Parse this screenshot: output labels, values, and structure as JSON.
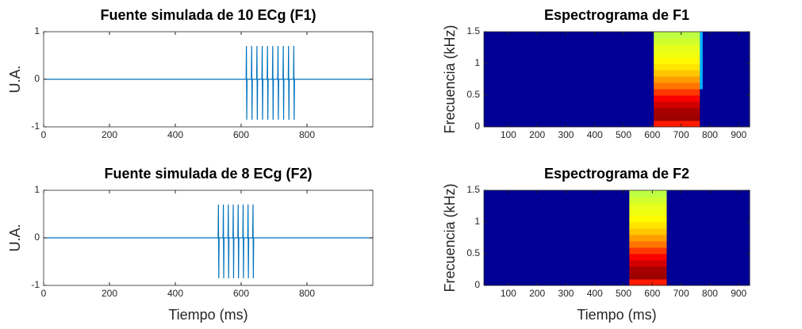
{
  "chart_data": [
    {
      "type": "line",
      "title": "Fuente simulada de 10 ECg (F1)",
      "ylabel": "U.A.",
      "color": "#0072bd",
      "x": [
        0,
        615,
        616,
        617,
        618,
        631,
        632,
        633,
        634,
        647,
        648,
        649,
        650,
        663,
        664,
        665,
        666,
        679,
        680,
        681,
        682,
        695,
        696,
        697,
        698,
        711,
        712,
        713,
        714,
        727,
        728,
        729,
        730,
        743,
        744,
        745,
        746,
        759,
        760,
        761,
        762,
        1000
      ],
      "values": [
        0,
        0,
        0.7,
        -0.85,
        0,
        0,
        0.7,
        -0.85,
        0,
        0,
        0.7,
        -0.85,
        0,
        0,
        0.7,
        -0.85,
        0,
        0,
        0.7,
        -0.85,
        0,
        0,
        0.7,
        -0.85,
        0,
        0,
        0.7,
        -0.85,
        0,
        0,
        0.7,
        -0.85,
        0,
        0,
        0.7,
        -0.85,
        0,
        0,
        0.7,
        -0.85,
        0,
        0
      ],
      "xlim": [
        0,
        1000
      ],
      "ylim": [
        -1,
        1
      ],
      "xticks": [
        0,
        200,
        400,
        600,
        800
      ],
      "yticks": [
        -1,
        0,
        1
      ]
    },
    {
      "type": "heatmap",
      "title": "Espectrograma de F1",
      "ylabel": "Frecuencia (kHz)",
      "colormap": "jet",
      "x_edges": [
        15,
        605,
        765,
        775,
        938
      ],
      "y_edges": [
        0,
        0.1,
        0.2,
        0.3,
        0.4,
        0.5,
        0.6,
        0.7,
        0.8,
        0.9,
        1.0,
        1.1,
        1.2,
        1.3,
        1.4,
        1.5
      ],
      "z": [
        [
          0.02,
          0.85,
          0.02,
          0.02
        ],
        [
          0.02,
          0.97,
          0.02,
          0.02
        ],
        [
          0.02,
          0.96,
          0.02,
          0.02
        ],
        [
          0.02,
          0.92,
          0.02,
          0.02
        ],
        [
          0.02,
          0.88,
          0.02,
          0.02
        ],
        [
          0.02,
          0.82,
          0.02,
          0.02
        ],
        [
          0.02,
          0.76,
          0.3,
          0.02
        ],
        [
          0.02,
          0.72,
          0.3,
          0.02
        ],
        [
          0.02,
          0.68,
          0.3,
          0.02
        ],
        [
          0.02,
          0.65,
          0.3,
          0.02
        ],
        [
          0.02,
          0.63,
          0.3,
          0.02
        ],
        [
          0.02,
          0.61,
          0.3,
          0.02
        ],
        [
          0.02,
          0.6,
          0.3,
          0.02
        ],
        [
          0.02,
          0.58,
          0.3,
          0.02
        ],
        [
          0.02,
          0.56,
          0.3,
          0.02
        ]
      ],
      "xlim": [
        15,
        938
      ],
      "ylim": [
        0,
        1.5
      ],
      "xticks": [
        100,
        200,
        300,
        400,
        500,
        600,
        700,
        800,
        900
      ],
      "yticks": [
        0,
        0.5,
        1,
        1.5
      ]
    },
    {
      "type": "line",
      "title": "Fuente simulada de 8 ECg (F2)",
      "ylabel": "U.A.",
      "xlabel": "Tiempo (ms)",
      "color": "#0072bd",
      "x": [
        0,
        530,
        531,
        532,
        533,
        545,
        546,
        547,
        548,
        560,
        561,
        562,
        563,
        575,
        576,
        577,
        578,
        590,
        591,
        592,
        593,
        605,
        606,
        607,
        608,
        620,
        621,
        622,
        623,
        635,
        636,
        637,
        638,
        1000
      ],
      "values": [
        0,
        0,
        0.7,
        -0.85,
        0,
        0,
        0.7,
        -0.85,
        0,
        0,
        0.7,
        -0.85,
        0,
        0,
        0.7,
        -0.85,
        0,
        0,
        0.7,
        -0.85,
        0,
        0,
        0.7,
        -0.85,
        0,
        0,
        0.7,
        -0.85,
        0,
        0,
        0.7,
        -0.85,
        0,
        0
      ],
      "xlim": [
        0,
        1000
      ],
      "ylim": [
        -1,
        1
      ],
      "xticks": [
        0,
        200,
        400,
        600,
        800
      ],
      "yticks": [
        -1,
        0,
        1
      ]
    },
    {
      "type": "heatmap",
      "title": "Espectrograma de F2",
      "ylabel": "Frecuencia (kHz)",
      "xlabel": "Tiempo (ms)",
      "colormap": "jet",
      "x_edges": [
        15,
        520,
        650,
        938
      ],
      "y_edges": [
        0,
        0.1,
        0.2,
        0.3,
        0.4,
        0.5,
        0.6,
        0.7,
        0.8,
        0.9,
        1.0,
        1.1,
        1.2,
        1.3,
        1.4,
        1.5
      ],
      "z": [
        [
          0.02,
          0.85,
          0.02
        ],
        [
          0.02,
          0.97,
          0.02
        ],
        [
          0.02,
          0.96,
          0.02
        ],
        [
          0.02,
          0.92,
          0.02
        ],
        [
          0.02,
          0.88,
          0.02
        ],
        [
          0.02,
          0.82,
          0.02
        ],
        [
          0.02,
          0.76,
          0.02
        ],
        [
          0.02,
          0.72,
          0.02
        ],
        [
          0.02,
          0.68,
          0.02
        ],
        [
          0.02,
          0.65,
          0.02
        ],
        [
          0.02,
          0.63,
          0.02
        ],
        [
          0.02,
          0.61,
          0.02
        ],
        [
          0.02,
          0.6,
          0.02
        ],
        [
          0.02,
          0.58,
          0.02
        ],
        [
          0.02,
          0.56,
          0.02
        ]
      ],
      "xlim": [
        15,
        938
      ],
      "ylim": [
        0,
        1.5
      ],
      "xticks": [
        100,
        200,
        300,
        400,
        500,
        600,
        700,
        800,
        900
      ],
      "yticks": [
        0,
        0.5,
        1,
        1.5
      ]
    }
  ]
}
